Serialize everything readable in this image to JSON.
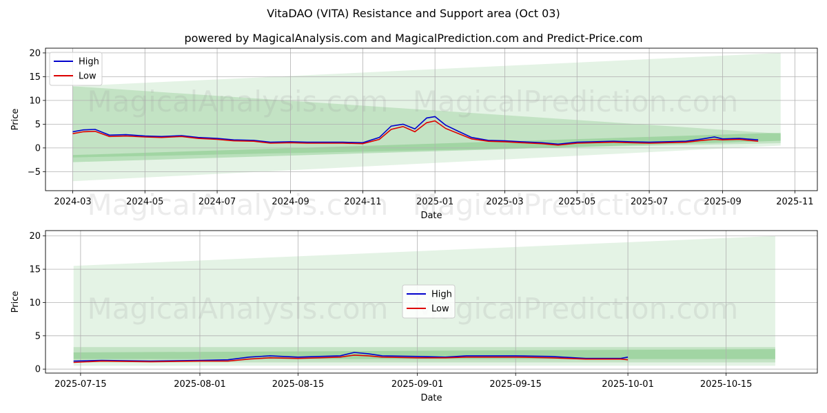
{
  "title": "VitaDAO (VITA) Resistance and Support area (Oct 03)",
  "subtitle": "powered by MagicalAnalysis.com and MagicalPrediction.com and Predict-Price.com",
  "watermarks": [
    "MagicalAnalysis.com",
    "MagicalPrediction.com"
  ],
  "colors": {
    "high": "#0000cc",
    "low": "#dd0000",
    "band": "#4caf50"
  },
  "chart_data": [
    {
      "type": "line",
      "xlabel": "Date",
      "ylabel": "Price",
      "x_tick_labels": [
        "2024-03",
        "2024-05",
        "2024-07",
        "2024-09",
        "2024-11",
        "2025-01",
        "2025-03",
        "2025-05",
        "2025-07",
        "2025-09",
        "2025-11"
      ],
      "y_ticks": [
        -5,
        0,
        5,
        10,
        15,
        20
      ],
      "x_range_months": [
        "2024-02",
        "2025-11"
      ],
      "ylim": [
        -9,
        21
      ],
      "grid": true,
      "legend": "top-left",
      "series": [
        {
          "name": "High",
          "points": [
            [
              "2024-03-01",
              3.4
            ],
            [
              "2024-03-10",
              3.8
            ],
            [
              "2024-03-20",
              3.9
            ],
            [
              "2024-04-01",
              2.7
            ],
            [
              "2024-04-15",
              2.8
            ],
            [
              "2024-05-01",
              2.5
            ],
            [
              "2024-05-15",
              2.4
            ],
            [
              "2024-06-01",
              2.6
            ],
            [
              "2024-06-15",
              2.2
            ],
            [
              "2024-07-01",
              2.0
            ],
            [
              "2024-07-15",
              1.7
            ],
            [
              "2024-08-01",
              1.6
            ],
            [
              "2024-08-15",
              1.2
            ],
            [
              "2024-09-01",
              1.3
            ],
            [
              "2024-09-15",
              1.2
            ],
            [
              "2024-10-01",
              1.2
            ],
            [
              "2024-10-15",
              1.2
            ],
            [
              "2024-11-01",
              1.1
            ],
            [
              "2024-11-15",
              2.2
            ],
            [
              "2024-11-25",
              4.6
            ],
            [
              "2024-12-05",
              5.0
            ],
            [
              "2024-12-15",
              4.0
            ],
            [
              "2024-12-25",
              6.3
            ],
            [
              "2025-01-01",
              6.6
            ],
            [
              "2025-01-10",
              4.8
            ],
            [
              "2025-01-20",
              3.6
            ],
            [
              "2025-02-01",
              2.2
            ],
            [
              "2025-02-15",
              1.6
            ],
            [
              "2025-03-01",
              1.5
            ],
            [
              "2025-03-15",
              1.3
            ],
            [
              "2025-04-01",
              1.1
            ],
            [
              "2025-04-15",
              0.8
            ],
            [
              "2025-05-01",
              1.2
            ],
            [
              "2025-05-15",
              1.3
            ],
            [
              "2025-06-01",
              1.4
            ],
            [
              "2025-06-15",
              1.3
            ],
            [
              "2025-07-01",
              1.2
            ],
            [
              "2025-07-15",
              1.3
            ],
            [
              "2025-08-01",
              1.4
            ],
            [
              "2025-08-15",
              1.9
            ],
            [
              "2025-08-25",
              2.3
            ],
            [
              "2025-09-01",
              1.9
            ],
            [
              "2025-09-15",
              2.0
            ],
            [
              "2025-10-01",
              1.7
            ]
          ]
        },
        {
          "name": "Low",
          "points": [
            [
              "2024-03-01",
              3.0
            ],
            [
              "2024-03-10",
              3.4
            ],
            [
              "2024-03-20",
              3.5
            ],
            [
              "2024-04-01",
              2.4
            ],
            [
              "2024-04-15",
              2.5
            ],
            [
              "2024-05-01",
              2.3
            ],
            [
              "2024-05-15",
              2.2
            ],
            [
              "2024-06-01",
              2.4
            ],
            [
              "2024-06-15",
              2.0
            ],
            [
              "2024-07-01",
              1.8
            ],
            [
              "2024-07-15",
              1.5
            ],
            [
              "2024-08-01",
              1.4
            ],
            [
              "2024-08-15",
              1.0
            ],
            [
              "2024-09-01",
              1.1
            ],
            [
              "2024-09-15",
              1.0
            ],
            [
              "2024-10-01",
              1.0
            ],
            [
              "2024-10-15",
              1.0
            ],
            [
              "2024-11-01",
              0.9
            ],
            [
              "2024-11-15",
              1.8
            ],
            [
              "2024-11-25",
              3.9
            ],
            [
              "2024-12-05",
              4.5
            ],
            [
              "2024-12-15",
              3.4
            ],
            [
              "2024-12-25",
              5.3
            ],
            [
              "2025-01-01",
              5.7
            ],
            [
              "2025-01-10",
              4.1
            ],
            [
              "2025-01-20",
              3.1
            ],
            [
              "2025-02-01",
              1.9
            ],
            [
              "2025-02-15",
              1.4
            ],
            [
              "2025-03-01",
              1.3
            ],
            [
              "2025-03-15",
              1.1
            ],
            [
              "2025-04-01",
              0.9
            ],
            [
              "2025-04-15",
              0.6
            ],
            [
              "2025-05-01",
              1.0
            ],
            [
              "2025-05-15",
              1.1
            ],
            [
              "2025-06-01",
              1.2
            ],
            [
              "2025-06-15",
              1.1
            ],
            [
              "2025-07-01",
              1.0
            ],
            [
              "2025-07-15",
              1.1
            ],
            [
              "2025-08-01",
              1.2
            ],
            [
              "2025-08-15",
              1.6
            ],
            [
              "2025-08-25",
              1.8
            ],
            [
              "2025-09-01",
              1.7
            ],
            [
              "2025-09-15",
              1.8
            ],
            [
              "2025-10-01",
              1.4
            ]
          ]
        }
      ],
      "bands": [
        {
          "start": [
            "2024-03-01",
            -7,
            13
          ],
          "end": [
            "2025-10-20",
            0.5,
            20
          ]
        },
        {
          "start": [
            "2024-03-01",
            -2,
            13
          ],
          "end": [
            "2025-10-20",
            1,
            3
          ]
        },
        {
          "start": [
            "2024-03-01",
            -3,
            -1.5
          ],
          "end": [
            "2025-10-20",
            1.5,
            3.2
          ]
        }
      ]
    },
    {
      "type": "line",
      "xlabel": "Date",
      "ylabel": "Price",
      "x_tick_labels": [
        "2025-07-15",
        "2025-08-01",
        "2025-08-15",
        "2025-09-01",
        "2025-09-15",
        "2025-10-01",
        "2025-10-15"
      ],
      "y_ticks": [
        0,
        5,
        10,
        15,
        20
      ],
      "x_range": [
        "2025-07-10",
        "2025-10-28"
      ],
      "ylim": [
        -0.6,
        20.8
      ],
      "grid": true,
      "legend": "center",
      "series": [
        {
          "name": "High",
          "points": [
            [
              "2025-07-14",
              1.2
            ],
            [
              "2025-07-18",
              1.3
            ],
            [
              "2025-07-25",
              1.2
            ],
            [
              "2025-08-01",
              1.3
            ],
            [
              "2025-08-05",
              1.4
            ],
            [
              "2025-08-08",
              1.8
            ],
            [
              "2025-08-11",
              2.0
            ],
            [
              "2025-08-15",
              1.8
            ],
            [
              "2025-08-18",
              1.9
            ],
            [
              "2025-08-21",
              2.0
            ],
            [
              "2025-08-23",
              2.5
            ],
            [
              "2025-08-25",
              2.3
            ],
            [
              "2025-08-27",
              2.0
            ],
            [
              "2025-09-01",
              1.9
            ],
            [
              "2025-09-05",
              1.8
            ],
            [
              "2025-09-08",
              2.0
            ],
            [
              "2025-09-12",
              2.0
            ],
            [
              "2025-09-15",
              2.0
            ],
            [
              "2025-09-20",
              1.9
            ],
            [
              "2025-09-25",
              1.6
            ],
            [
              "2025-09-30",
              1.6
            ],
            [
              "2025-10-01",
              1.8
            ]
          ]
        },
        {
          "name": "Low",
          "points": [
            [
              "2025-07-14",
              1.0
            ],
            [
              "2025-07-18",
              1.2
            ],
            [
              "2025-07-25",
              1.1
            ],
            [
              "2025-08-01",
              1.2
            ],
            [
              "2025-08-05",
              1.2
            ],
            [
              "2025-08-08",
              1.5
            ],
            [
              "2025-08-11",
              1.7
            ],
            [
              "2025-08-15",
              1.6
            ],
            [
              "2025-08-18",
              1.7
            ],
            [
              "2025-08-21",
              1.8
            ],
            [
              "2025-08-23",
              2.1
            ],
            [
              "2025-08-25",
              2.0
            ],
            [
              "2025-08-27",
              1.8
            ],
            [
              "2025-09-01",
              1.7
            ],
            [
              "2025-09-05",
              1.7
            ],
            [
              "2025-09-08",
              1.8
            ],
            [
              "2025-09-12",
              1.8
            ],
            [
              "2025-09-15",
              1.8
            ],
            [
              "2025-09-20",
              1.7
            ],
            [
              "2025-09-25",
              1.5
            ],
            [
              "2025-09-30",
              1.5
            ],
            [
              "2025-10-01",
              1.4
            ]
          ]
        }
      ],
      "bands": [
        {
          "start": [
            "2025-07-14",
            0.5,
            15.5
          ],
          "end": [
            "2025-10-22",
            0.5,
            20
          ]
        },
        {
          "start": [
            "2025-07-14",
            1,
            3.3
          ],
          "end": [
            "2025-10-22",
            1,
            3.3
          ]
        },
        {
          "start": [
            "2025-07-14",
            1.5,
            2.5
          ],
          "end": [
            "2025-10-22",
            1.5,
            3
          ]
        }
      ]
    }
  ]
}
